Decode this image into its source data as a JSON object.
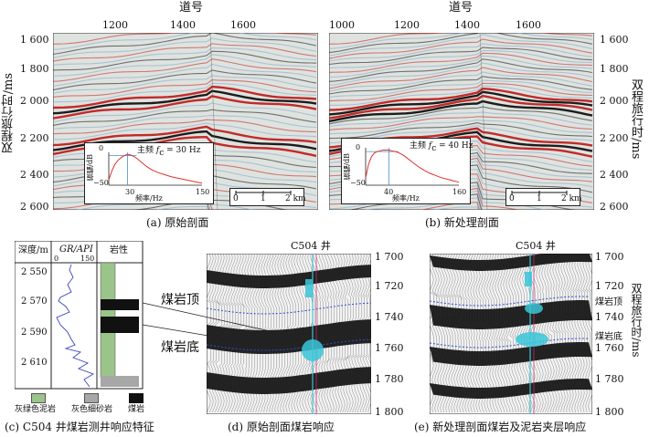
{
  "top": {
    "axis_title_top": "道号",
    "left_ylabel": "双程旅行时/ms",
    "right_ylabel": "双程旅行时/ms",
    "a": {
      "x_ticks": [
        "1200",
        "1400",
        "1600"
      ],
      "y_ticks": [
        "1 600",
        "1 800",
        "2 000",
        "2 200",
        "2 400",
        "2 600"
      ],
      "caption": "(a) 原始剖面",
      "inset": {
        "freq_label": "主频",
        "freq_value": "= 30 Hz",
        "fc_symbol": "f",
        "fc_sub": "c",
        "ylabel": "振幅/dB",
        "xlabel": "频率/Hz",
        "y_ticks": [
          "0",
          "−50"
        ],
        "x_ticks": [
          "0",
          "30",
          "150"
        ],
        "spectrum_x": [
          0,
          5,
          10,
          15,
          20,
          25,
          30,
          35,
          40,
          45,
          50,
          55,
          60,
          65,
          70,
          80,
          90,
          100,
          110,
          120,
          130,
          140,
          150
        ],
        "spectrum_db": [
          -42,
          -28,
          -18,
          -12,
          -8,
          -5,
          -3,
          -4,
          -6,
          -9,
          -13,
          -17,
          -21,
          -24,
          -27,
          -31,
          -34,
          -37,
          -39,
          -41,
          -43,
          -45,
          -47
        ],
        "x_max": 150,
        "y_min": -50,
        "y_max": 0,
        "marker_x": 30
      },
      "scale": {
        "ticks": [
          "0",
          "1",
          "2 km"
        ]
      }
    },
    "b": {
      "x_ticks": [
        "1000",
        "1200",
        "1400",
        "1600"
      ],
      "caption": "(b) 新处理剖面",
      "inset": {
        "freq_label": "主频",
        "freq_value": "= 40 Hz",
        "fc_symbol": "f",
        "fc_sub": "c",
        "ylabel": "振幅/dB",
        "xlabel": "频率/Hz",
        "y_ticks": [
          "0",
          "−50"
        ],
        "x_ticks": [
          "0",
          "40",
          "160"
        ],
        "spectrum_x": [
          0,
          5,
          10,
          15,
          20,
          25,
          30,
          35,
          40,
          45,
          50,
          55,
          60,
          65,
          70,
          80,
          90,
          100,
          110,
          120,
          130,
          140,
          150,
          160
        ],
        "spectrum_db": [
          -40,
          -22,
          -12,
          -7,
          -5,
          -4,
          -3,
          -3,
          -3,
          -4,
          -5,
          -6,
          -8,
          -10,
          -13,
          -19,
          -25,
          -30,
          -34,
          -37,
          -40,
          -42,
          -44,
          -46
        ],
        "x_max": 160,
        "y_min": -50,
        "y_max": 0,
        "marker_x": 40
      },
      "scale": {
        "ticks": [
          "0",
          "1",
          "2 km"
        ]
      }
    }
  },
  "bottom": {
    "c": {
      "depth_header": "深度/m",
      "gr_header": "GR/API",
      "gr_ticks": [
        "0",
        "150"
      ],
      "lith_header": "岩性",
      "depth_ticks": [
        "2 550",
        "2 570",
        "2 590",
        "2 610"
      ],
      "legend": [
        "灰绿色泥岩",
        "灰色细砂岩",
        "煤岩"
      ],
      "caption": "(c) C504 井煤岩测井响应特征"
    },
    "d": {
      "well": "C504 井",
      "label_top": "煤岩顶",
      "label_bottom": "煤岩底",
      "y_ticks": [
        "1 700",
        "1 720",
        "1 740",
        "1 760",
        "1 780",
        "1 800"
      ],
      "caption": "(d) 原始剖面煤岩响应"
    },
    "e": {
      "well": "C504 井",
      "label_top": "煤岩顶",
      "label_bottom": "煤岩底",
      "y_ticks": [
        "1 700",
        "1 720",
        "1 740",
        "1 760",
        "1 780",
        "1 800"
      ],
      "ylabel": "双程旅行时/ms",
      "caption": "(e) 新处理剖面煤岩及泥岩夹层响应"
    }
  },
  "colors": {
    "seis_bg": "#dfe3df",
    "seis_red": "#c02020",
    "seis_black": "#111111",
    "seis_blue": "#7fa8c8",
    "cyan": "#39c5d8",
    "spectrum": "#e0322a",
    "marker": "#4a90c8",
    "mudstone": "#9bc48a"
  }
}
